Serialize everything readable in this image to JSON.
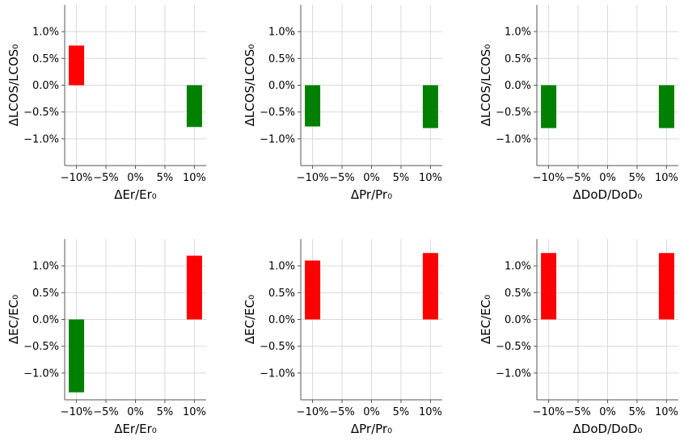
{
  "colors": {
    "positive": "#ff0000",
    "negative": "#008000"
  },
  "chart_data": [
    {
      "type": "bar",
      "xlabel": "ΔEr/Er₀",
      "ylabel": "ΔLCOS/LCOS₀",
      "xlim": [
        -0.12,
        0.12
      ],
      "ylim": [
        -0.015,
        0.015
      ],
      "xticks": [
        -0.1,
        -0.05,
        0,
        0.05,
        0.1
      ],
      "xtick_labels": [
        "−10%",
        "−5%",
        "0%",
        "5%",
        "10%"
      ],
      "yticks": [
        -0.01,
        -0.005,
        0,
        0.005,
        0.01
      ],
      "ytick_labels": [
        "−1.0%",
        "−0.5%",
        "0.0%",
        "0.5%",
        "1.0%"
      ],
      "grid": true,
      "x": [
        -0.1,
        0.1
      ],
      "values": [
        0.0074,
        -0.0078
      ]
    },
    {
      "type": "bar",
      "xlabel": "ΔPr/Pr₀",
      "ylabel": "ΔLCOS/LCOS₀",
      "xlim": [
        -0.12,
        0.12
      ],
      "ylim": [
        -0.015,
        0.015
      ],
      "xticks": [
        -0.1,
        -0.05,
        0,
        0.05,
        0.1
      ],
      "xtick_labels": [
        "−10%",
        "−5%",
        "0%",
        "5%",
        "10%"
      ],
      "yticks": [
        -0.01,
        -0.005,
        0,
        0.005,
        0.01
      ],
      "ytick_labels": [
        "−1.0%",
        "−0.5%",
        "0.0%",
        "0.5%",
        "1.0%"
      ],
      "grid": true,
      "x": [
        -0.1,
        0.1
      ],
      "values": [
        -0.0077,
        -0.008
      ]
    },
    {
      "type": "bar",
      "xlabel": "ΔDoD/DoD₀",
      "ylabel": "ΔLCOS/LCOS₀",
      "xlim": [
        -0.12,
        0.12
      ],
      "ylim": [
        -0.015,
        0.015
      ],
      "xticks": [
        -0.1,
        -0.05,
        0,
        0.05,
        0.1
      ],
      "xtick_labels": [
        "−10%",
        "−5%",
        "0%",
        "5%",
        "10%"
      ],
      "yticks": [
        -0.01,
        -0.005,
        0,
        0.005,
        0.01
      ],
      "ytick_labels": [
        "−1.0%",
        "−0.5%",
        "0.0%",
        "0.5%",
        "1.0%"
      ],
      "grid": true,
      "x": [
        -0.1,
        0.1
      ],
      "values": [
        -0.008,
        -0.008
      ]
    },
    {
      "type": "bar",
      "xlabel": "ΔEr/Er₀",
      "ylabel": "ΔEC/EC₀",
      "xlim": [
        -0.12,
        0.12
      ],
      "ylim": [
        -0.015,
        0.015
      ],
      "xticks": [
        -0.1,
        -0.05,
        0,
        0.05,
        0.1
      ],
      "xtick_labels": [
        "−10%",
        "−5%",
        "0%",
        "5%",
        "10%"
      ],
      "yticks": [
        -0.01,
        -0.005,
        0,
        0.005,
        0.01
      ],
      "ytick_labels": [
        "−1.0%",
        "−0.5%",
        "0.0%",
        "0.5%",
        "1.0%"
      ],
      "grid": true,
      "x": [
        -0.1,
        0.1
      ],
      "values": [
        -0.0136,
        0.0119
      ]
    },
    {
      "type": "bar",
      "xlabel": "ΔPr/Pr₀",
      "ylabel": "ΔEC/EC₀",
      "xlim": [
        -0.12,
        0.12
      ],
      "ylim": [
        -0.015,
        0.015
      ],
      "xticks": [
        -0.1,
        -0.05,
        0,
        0.05,
        0.1
      ],
      "xtick_labels": [
        "−10%",
        "−5%",
        "0%",
        "5%",
        "10%"
      ],
      "yticks": [
        -0.01,
        -0.005,
        0,
        0.005,
        0.01
      ],
      "ytick_labels": [
        "−1.0%",
        "−0.5%",
        "0.0%",
        "0.5%",
        "1.0%"
      ],
      "grid": true,
      "x": [
        -0.1,
        0.1
      ],
      "values": [
        0.011,
        0.0124
      ]
    },
    {
      "type": "bar",
      "xlabel": "ΔDoD/DoD₀",
      "ylabel": "ΔEC/EC₀",
      "xlim": [
        -0.12,
        0.12
      ],
      "ylim": [
        -0.015,
        0.015
      ],
      "xticks": [
        -0.1,
        -0.05,
        0,
        0.05,
        0.1
      ],
      "xtick_labels": [
        "−10%",
        "−5%",
        "0%",
        "5%",
        "10%"
      ],
      "yticks": [
        -0.01,
        -0.005,
        0,
        0.005,
        0.01
      ],
      "ytick_labels": [
        "−1.0%",
        "−0.5%",
        "0.0%",
        "0.5%",
        "1.0%"
      ],
      "grid": true,
      "x": [
        -0.1,
        0.1
      ],
      "values": [
        0.0124,
        0.0124
      ]
    }
  ]
}
